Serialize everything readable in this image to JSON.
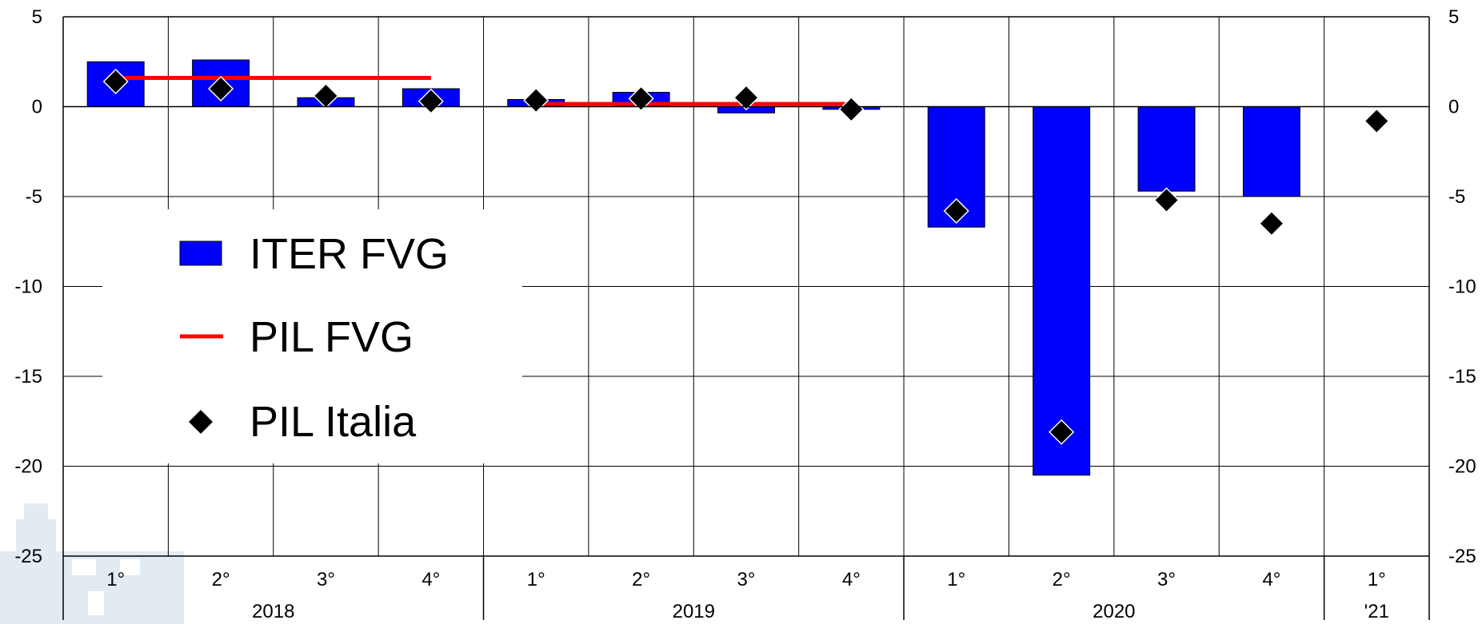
{
  "chart_data": {
    "type": "bar",
    "categories": [
      "1°",
      "2°",
      "3°",
      "4°",
      "1°",
      "2°",
      "3°",
      "4°",
      "1°",
      "2°",
      "3°",
      "4°",
      "1°"
    ],
    "years": [
      {
        "label": "2018",
        "span": 4
      },
      {
        "label": "2019",
        "span": 4
      },
      {
        "label": "2020",
        "span": 4
      },
      {
        "label": "'21",
        "span": 1
      }
    ],
    "ylim": [
      -25,
      5
    ],
    "yticks": [
      5,
      0,
      -5,
      -10,
      -15,
      -20,
      -25
    ],
    "grid": true,
    "legend_position": "left",
    "series": [
      {
        "name": "ITER FVG",
        "kind": "bar",
        "color": "#0000ff",
        "values": [
          2.5,
          2.6,
          0.5,
          1.0,
          0.4,
          0.8,
          -0.35,
          -0.15,
          -6.7,
          -20.5,
          -4.7,
          -5.0,
          null
        ]
      },
      {
        "name": "PIL FVG",
        "kind": "line",
        "color": "#ff0000",
        "segments": [
          {
            "from": 0,
            "to": 3,
            "value": 1.6
          },
          {
            "from": 4,
            "to": 7,
            "value": 0.15
          }
        ]
      },
      {
        "name": "PIL Italia",
        "kind": "marker",
        "color": "#000000",
        "values": [
          1.4,
          1.0,
          0.6,
          0.3,
          0.35,
          0.45,
          0.5,
          -0.15,
          -5.8,
          -18.1,
          -5.2,
          -6.5,
          -0.8
        ]
      }
    ]
  }
}
